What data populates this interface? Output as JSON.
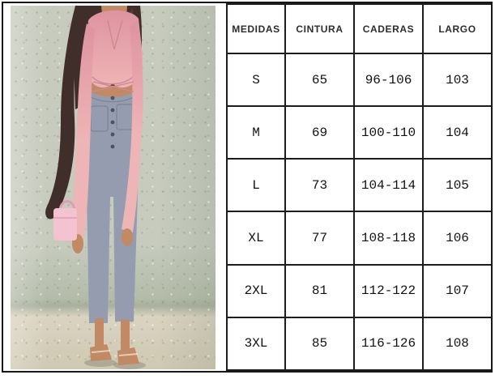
{
  "photo": {
    "description": "Model with long dark wavy hair wearing a pink cropped tie-front blazer, gray high-waist button-fly straight-leg pants, clear heeled sandals, holding a small pink handbag, posing against a speckled sage-gray wall on a beige floor"
  },
  "palette": {
    "frame": "#161616",
    "line": "#1c1c1c",
    "wall": "#c6cbbd",
    "wall_dark": "#b4bba9",
    "wall_edge": "#a9b09e",
    "floor": "#d9d3c0",
    "floor_dark": "#cfc8b2",
    "hair": "#402e2a",
    "hair_light": "#553c34",
    "skin": "#c18a64",
    "skin_dark": "#a97450",
    "blazer": "#e8a4a9",
    "blazer_top": "#de93a0",
    "blazer_bottom": "#eeb5b6",
    "blazer_dark": "#cf8890",
    "pants": "#959cb0",
    "pants_dark": "#7d8498",
    "pants_btn": "#4c5164",
    "bag": "#f3c3d2",
    "bag_dark": "#e09cb2"
  },
  "table": {
    "headers": [
      "MEDIDAS",
      "CINTURA",
      "CADERAS",
      "LARGO"
    ],
    "rows": [
      [
        "S",
        "65",
        "96-106",
        "103"
      ],
      [
        "M",
        "69",
        "100-110",
        "104"
      ],
      [
        "L",
        "73",
        "104-114",
        "105"
      ],
      [
        "XL",
        "77",
        "108-118",
        "106"
      ],
      [
        "2XL",
        "81",
        "112-122",
        "107"
      ],
      [
        "3XL",
        "85",
        "116-126",
        "108"
      ]
    ]
  }
}
